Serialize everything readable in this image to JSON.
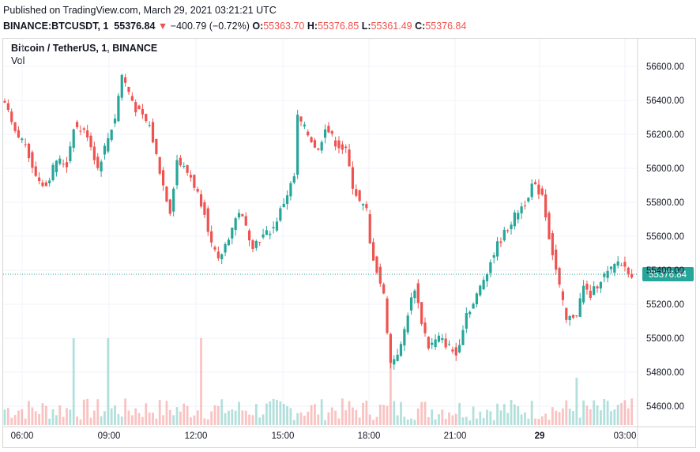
{
  "header": {
    "published": "Published on TradingView.com, March 29, 2021 03:21:21 UTC",
    "symbol": "BINANCE:BTCUSDT, 1",
    "last": "55376.84",
    "change_arrow": "▼",
    "change": "−400.79 (−0.72%)",
    "o_label": "O:",
    "o": "55363.70",
    "h_label": "H:",
    "h": "55376.85",
    "l_label": "L:",
    "l": "55361.49",
    "c_label": "C:",
    "c": "55376.84"
  },
  "legend": {
    "symbol": "Bitcoin / TetherUS, 1, BINANCE",
    "volume": "Vol"
  },
  "chart_data": {
    "type": "candlestick",
    "title": "Bitcoin / TetherUS, 1, BINANCE",
    "x_ticks": [
      "06:00",
      "09:00",
      "12:00",
      "15:00",
      "18:00",
      "21:00",
      "29",
      "03:00"
    ],
    "y_ticks": [
      54600,
      54800,
      55000,
      55200,
      55400,
      55600,
      55800,
      56000,
      56200,
      56400,
      56600
    ],
    "ylim": [
      54500,
      56700
    ],
    "grid": true,
    "last_price": 55376.84,
    "last_price_label": "55376.84",
    "up_color": "#26a69a",
    "down_color": "#ef5350",
    "price_path": [
      [
        0,
        56380
      ],
      [
        3,
        56200
      ],
      [
        6,
        56150
      ],
      [
        9,
        55950
      ],
      [
        12,
        55900
      ],
      [
        15,
        56050
      ],
      [
        18,
        56020
      ],
      [
        20,
        56250
      ],
      [
        24,
        56200
      ],
      [
        27,
        56000
      ],
      [
        30,
        56180
      ],
      [
        32,
        56300
      ],
      [
        34,
        56550
      ],
      [
        38,
        56350
      ],
      [
        42,
        56250
      ],
      [
        46,
        55900
      ],
      [
        48,
        55750
      ],
      [
        50,
        56050
      ],
      [
        54,
        55950
      ],
      [
        58,
        55750
      ],
      [
        60,
        55550
      ],
      [
        62,
        55450
      ],
      [
        64,
        55550
      ],
      [
        68,
        55750
      ],
      [
        72,
        55550
      ],
      [
        75,
        55600
      ],
      [
        78,
        55650
      ],
      [
        80,
        55750
      ],
      [
        82,
        55850
      ],
      [
        84,
        55950
      ],
      [
        85,
        56300
      ],
      [
        88,
        56200
      ],
      [
        91,
        56100
      ],
      [
        93,
        56250
      ],
      [
        96,
        56150
      ],
      [
        99,
        56100
      ],
      [
        101,
        55900
      ],
      [
        103,
        55800
      ],
      [
        105,
        55750
      ],
      [
        106,
        55550
      ],
      [
        108,
        55400
      ],
      [
        110,
        55250
      ],
      [
        112,
        54850
      ],
      [
        115,
        54950
      ],
      [
        117,
        55150
      ],
      [
        119,
        55300
      ],
      [
        121,
        55100
      ],
      [
        123,
        54950
      ],
      [
        126,
        55000
      ],
      [
        129,
        54950
      ],
      [
        131,
        54900
      ],
      [
        134,
        55150
      ],
      [
        136,
        55200
      ],
      [
        138,
        55300
      ],
      [
        141,
        55450
      ],
      [
        143,
        55550
      ],
      [
        146,
        55650
      ],
      [
        149,
        55750
      ],
      [
        151,
        55800
      ],
      [
        153,
        55900
      ],
      [
        156,
        55850
      ],
      [
        158,
        55600
      ],
      [
        160,
        55400
      ],
      [
        163,
        55100
      ],
      [
        166,
        55150
      ],
      [
        168,
        55300
      ],
      [
        170,
        55250
      ],
      [
        173,
        55350
      ],
      [
        176,
        55400
      ],
      [
        178,
        55450
      ],
      [
        181,
        55400
      ],
      [
        182,
        55376.84
      ]
    ],
    "volume_spikes": [
      {
        "time_index": 20,
        "volume": "high"
      },
      {
        "time_index": 30,
        "volume": "high"
      },
      {
        "time_index": 57,
        "volume": "high"
      },
      {
        "time_index": 112,
        "volume": "high"
      },
      {
        "time_index": 166,
        "volume": "medium"
      }
    ]
  }
}
